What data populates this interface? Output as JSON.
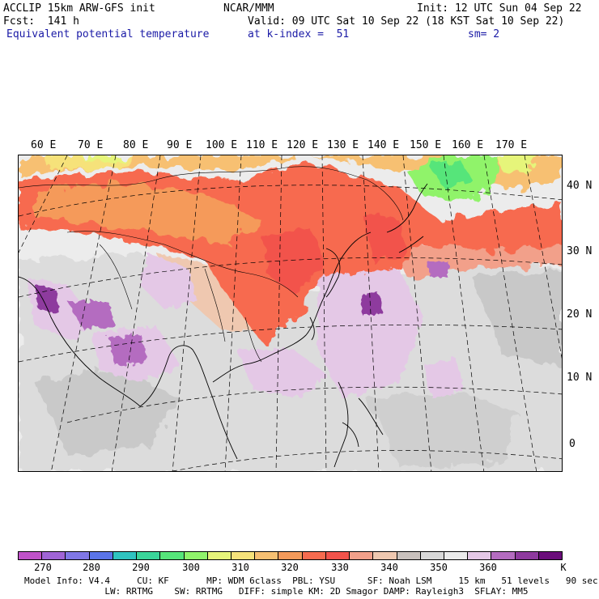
{
  "header": {
    "line1_left": "ACCLIP 15km ARW-GFS init",
    "line1_mid": "NCAR/MMM",
    "line1_right": "Init: 12 UTC Sun 04 Sep 22",
    "line2_left": "Fcst:  141 h",
    "line2_right": "Valid: 09 UTC Sat 10 Sep 22 (18 KST Sat 10 Sep 22)",
    "line3_left": "Equivalent potential temperature",
    "line3_mid": "at k-index =  51",
    "line3_right": "sm= 2"
  },
  "map": {
    "lon_labels": [
      "60 E",
      "70 E",
      "80 E",
      "90 E",
      "100 E",
      "110 E",
      "120 E",
      "130 E",
      "140 E",
      "150 E",
      "160 E",
      "170 E"
    ],
    "lat_labels": [
      "40 N",
      "30 N",
      "20 N",
      "10 N",
      "0"
    ]
  },
  "colorbar": {
    "colors": [
      "#c052c9",
      "#a064d6",
      "#8077e6",
      "#5a74e8",
      "#2fc4c0",
      "#3ad59a",
      "#56e57a",
      "#90f36b",
      "#e6f57a",
      "#f6e27a",
      "#f7c072",
      "#f59a5a",
      "#f76b4f",
      "#f2534b",
      "#f2a08a",
      "#efc8b0",
      "#c9c1bd",
      "#d8d8d8",
      "#ebebeb",
      "#e4c8e6",
      "#b46cc0",
      "#8e3a9e",
      "#6a0c7a"
    ],
    "ticks": [
      "270",
      "280",
      "290",
      "300",
      "310",
      "320",
      "330",
      "340",
      "350",
      "360"
    ],
    "unit": "K"
  },
  "footer": {
    "line1": "Model Info: V4.4     CU: KF       MP: WDM 6class  PBL: YSU      SF: Noah LSM     15 km   51 levels   90 sec",
    "line2": "               LW: RRTMG    SW: RRTMG   DIFF: simple KM: 2D Smagor DAMP: Rayleigh3  SFLAY: MM5"
  }
}
